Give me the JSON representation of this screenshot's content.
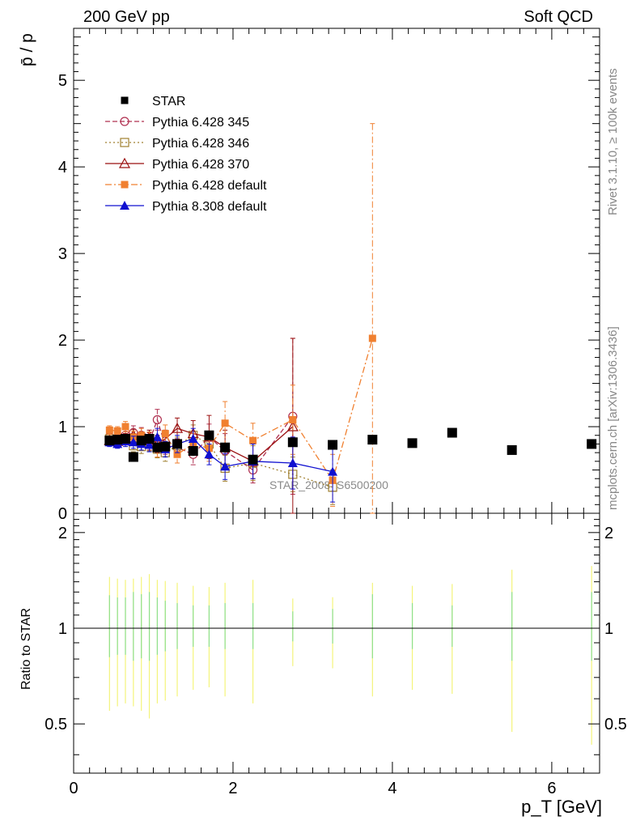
{
  "header": {
    "left_title": "200 GeV pp",
    "right_title": "Soft QCD"
  },
  "side_labels": {
    "rivet": "Rivet 3.1.10, ≥ 100k events",
    "source": "mcplots.cern.ch [arXiv:1306.3436]"
  },
  "watermark": "STAR_2008_S6500200",
  "chart_data": [
    {
      "type": "scatter",
      "panel": "main",
      "ylabel": "p̄ / p",
      "ylim": [
        0,
        5.6
      ],
      "xlim": [
        0,
        6.6
      ],
      "yticks": [
        0,
        1,
        2,
        3,
        4,
        5
      ],
      "ytick_labels": [
        "0",
        "1",
        "2",
        "3",
        "4",
        "5"
      ],
      "legend_position": "top-left",
      "series": [
        {
          "name": "STAR",
          "color": "#000000",
          "marker": "square-filled",
          "line": "none",
          "x": [
            0.45,
            0.55,
            0.65,
            0.75,
            0.85,
            0.95,
            1.05,
            1.15,
            1.3,
            1.5,
            1.7,
            1.9,
            2.25,
            2.75,
            3.25,
            3.75,
            4.25,
            4.75,
            5.5,
            6.5
          ],
          "y": [
            0.84,
            0.85,
            0.86,
            0.65,
            0.84,
            0.86,
            0.76,
            0.77,
            0.8,
            0.72,
            0.9,
            0.76,
            0.62,
            0.82,
            0.79,
            0.85,
            0.81,
            0.93,
            0.73,
            0.8
          ]
        },
        {
          "name": "Pythia 6.428 345",
          "color": "#b03050",
          "marker": "circle-open",
          "line": "dashed",
          "x": [
            0.45,
            0.55,
            0.65,
            0.75,
            0.85,
            0.95,
            1.05,
            1.15,
            1.3,
            1.5,
            1.7,
            1.9,
            2.25,
            2.75
          ],
          "y": [
            0.88,
            0.87,
            0.9,
            0.93,
            0.9,
            0.83,
            1.08,
            0.78,
            0.76,
            0.68,
            0.88,
            0.72,
            0.5,
            1.12
          ],
          "yerr": [
            0.06,
            0.06,
            0.07,
            0.08,
            0.09,
            0.1,
            0.12,
            0.1,
            0.1,
            0.12,
            0.15,
            0.2,
            0.15,
            0.9
          ]
        },
        {
          "name": "Pythia 6.428 346",
          "color": "#a08030",
          "marker": "square-open",
          "line": "dotted",
          "x": [
            0.45,
            0.55,
            0.65,
            0.75,
            0.85,
            0.95,
            1.05,
            1.15,
            1.3,
            1.5,
            1.7,
            1.9,
            2.25,
            2.75,
            3.25
          ],
          "y": [
            0.86,
            0.84,
            0.86,
            0.78,
            0.77,
            0.8,
            0.74,
            0.7,
            0.78,
            0.9,
            0.8,
            0.52,
            0.58,
            0.45,
            0.3
          ],
          "yerr": [
            0.05,
            0.05,
            0.06,
            0.07,
            0.08,
            0.08,
            0.1,
            0.1,
            0.1,
            0.12,
            0.15,
            0.15,
            0.2,
            0.2,
            0.2
          ]
        },
        {
          "name": "Pythia 6.428 370",
          "color": "#9a1010",
          "marker": "triangle-open",
          "line": "solid",
          "x": [
            0.45,
            0.55,
            0.65,
            0.75,
            0.85,
            0.95,
            1.05,
            1.15,
            1.3,
            1.5,
            1.7,
            1.9,
            2.25,
            2.75
          ],
          "y": [
            0.84,
            0.83,
            0.86,
            0.9,
            0.86,
            0.88,
            0.8,
            0.86,
            0.98,
            0.92,
            0.88,
            0.76,
            0.6,
            1.0
          ],
          "yerr": [
            0.05,
            0.05,
            0.06,
            0.07,
            0.08,
            0.08,
            0.1,
            0.1,
            0.12,
            0.15,
            0.25,
            0.2,
            0.2,
            1.02
          ]
        },
        {
          "name": "Pythia 6.428 default",
          "color": "#f08030",
          "marker": "square-filled-small",
          "line": "dashdot",
          "x": [
            0.45,
            0.55,
            0.65,
            0.75,
            0.85,
            0.95,
            1.05,
            1.15,
            1.3,
            1.5,
            1.7,
            1.9,
            2.25,
            2.75,
            3.25,
            3.75
          ],
          "y": [
            0.96,
            0.95,
            1.0,
            0.88,
            0.9,
            0.86,
            0.75,
            0.92,
            0.68,
            0.8,
            0.75,
            1.04,
            0.84,
            1.08,
            0.38,
            2.02
          ],
          "yerr": [
            0.05,
            0.05,
            0.06,
            0.07,
            0.08,
            0.08,
            0.1,
            0.1,
            0.1,
            0.12,
            0.15,
            0.25,
            0.2,
            0.4,
            0.3,
            2.48
          ]
        },
        {
          "name": "Pythia 8.308 default",
          "color": "#1010d0",
          "marker": "triangle-filled",
          "line": "solid",
          "x": [
            0.45,
            0.55,
            0.65,
            0.75,
            0.85,
            0.95,
            1.05,
            1.15,
            1.3,
            1.5,
            1.7,
            1.9,
            2.25,
            2.75,
            3.25
          ],
          "y": [
            0.82,
            0.8,
            0.83,
            0.82,
            0.8,
            0.79,
            0.88,
            0.74,
            0.8,
            0.86,
            0.68,
            0.54,
            0.6,
            0.58,
            0.48
          ],
          "yerr": [
            0.05,
            0.05,
            0.06,
            0.07,
            0.07,
            0.08,
            0.1,
            0.09,
            0.1,
            0.12,
            0.12,
            0.15,
            0.2,
            0.3,
            0.35
          ]
        }
      ]
    },
    {
      "type": "scatter",
      "panel": "ratio",
      "ylabel": "Ratio to STAR",
      "xlabel": "p_T [GeV]",
      "xlim": [
        0,
        6.6
      ],
      "xticks": [
        0,
        2,
        4,
        6
      ],
      "xtick_labels": [
        "0",
        "2",
        "4",
        "6"
      ],
      "ylim": [
        0.35,
        2.3
      ],
      "yticks": [
        0.5,
        1,
        2
      ],
      "ytick_labels": [
        "0.5",
        "1",
        "2"
      ],
      "reference_line": 1,
      "bands": {
        "x": [
          0.45,
          0.55,
          0.65,
          0.75,
          0.85,
          0.95,
          1.05,
          1.15,
          1.3,
          1.5,
          1.7,
          1.9,
          2.25,
          2.75,
          3.25,
          3.75,
          4.25,
          4.75,
          5.5,
          6.5
        ],
        "stat": [
          0.27,
          0.25,
          0.25,
          0.3,
          0.28,
          0.3,
          0.25,
          0.22,
          0.2,
          0.18,
          0.18,
          0.2,
          0.2,
          0.13,
          0.15,
          0.28,
          0.2,
          0.18,
          0.3,
          0.3
        ],
        "total": [
          0.75,
          0.72,
          0.7,
          0.72,
          0.75,
          0.8,
          0.7,
          0.68,
          0.65,
          0.6,
          0.58,
          0.65,
          0.7,
          0.4,
          0.42,
          0.65,
          0.6,
          0.63,
          0.88,
          0.95
        ],
        "stat_color": "#8ee08e",
        "total_color": "#f4f47a"
      }
    }
  ]
}
